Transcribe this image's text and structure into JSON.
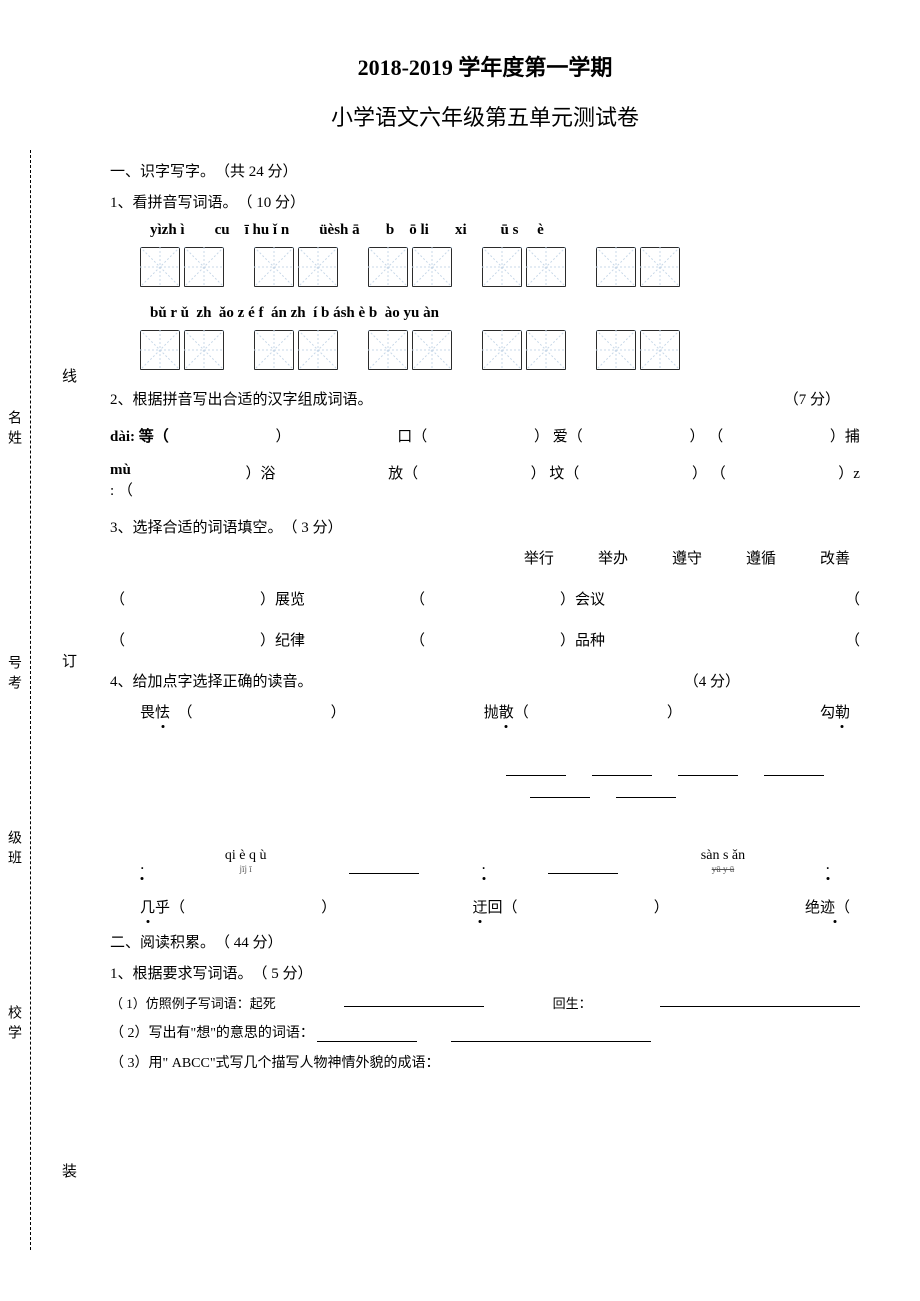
{
  "title_main": "2018-2019 学年度第一学期",
  "title_sub": "小学语文六年级第五单元测试卷",
  "sec1": {
    "header": "一、识字写字。　（共 24 分）",
    "q1": {
      "header": "1、看拼音写词语。　（ 10 分）",
      "row1_pinyin": "yìzh ì        cu    ī hu ǐ n        üèsh ā       b    ō li       xi         ū s     è",
      "row2_pinyin": "bǔ r ǔ  zh  ǎo z é f  án zh  í b ásh è b  ào yu àn"
    },
    "q2": {
      "header": "2、根据拼音写出合适的汉字组成词语。",
      "score": "（7 分）",
      "line1_label": "dài:  等（",
      "line1_b": "）",
      "line1_c": "口（",
      "line1_d": "）  爱（",
      "line1_e": "）  （",
      "line1_f": "）捕",
      "line2_label": "mù",
      "line2_label2": "  :    （",
      "line2_b": "）浴",
      "line2_c": "放（",
      "line2_d": "）  坟（",
      "line2_e": "）  （",
      "line2_f": "）z"
    },
    "q3": {
      "header": "3、选择合适的词语填空。　（ 3 分）",
      "w1": "举行",
      "w2": "举办",
      "w3": "遵守",
      "w4": "遵循",
      "w5": "改善",
      "r1a": "（",
      "r1b": "）展览",
      "r1c": "（",
      "r1d": "）会议",
      "r1e": "（",
      "r2a": "（",
      "r2b": "）纪律",
      "r2c": "（",
      "r2d": "）品种",
      "r2e": "（"
    },
    "q4": {
      "header": "4、给加点字选择正确的读音。",
      "score": "（4 分）",
      "w1a": "畏",
      "w1b": "怯",
      "w1c": "（",
      "w2a": "）",
      "w2b": "抛",
      "w2c": "散",
      "w2d": "（",
      "w2e": "）",
      "w3a": "勾",
      "w3b": "勒",
      "py1": "qi è q ù",
      "py1b": "jīj ī",
      "py2": "sàn s ǎn",
      "py2b": "yū y ū",
      "r2w1": "几",
      "r2w2": "乎（",
      "r2w3": "）",
      "r2w4": "迂",
      "r2w5": "回（",
      "r2w6": "）",
      "r2w7": "绝",
      "r2w8": "迹（"
    }
  },
  "sec2": {
    "header": "二、阅读积累。　（ 44 分）",
    "q1": {
      "header": "1、根据要求写词语。　（ 5 分）",
      "l1a": "（ 1）仿照例子写词语：起死",
      "l1b": "回生：",
      "l2": "（ 2）写出有\"想\"的意思的词语：",
      "l3": "（ 3）用\" ABCC\"式写几个描写人物神情外貌的成语："
    }
  },
  "side": {
    "xian": "线",
    "ming": "名",
    "xing": "姓",
    "ding": "订",
    "hao": "号",
    "kao": "考",
    "ji": "级",
    "ban": "班",
    "xiao": "校",
    "xue": "学",
    "zhuang": "装"
  },
  "colors": {
    "box_border": "#2b2b2b",
    "box_guide": "#c8d8e8",
    "text": "#000000",
    "bg": "#ffffff"
  }
}
